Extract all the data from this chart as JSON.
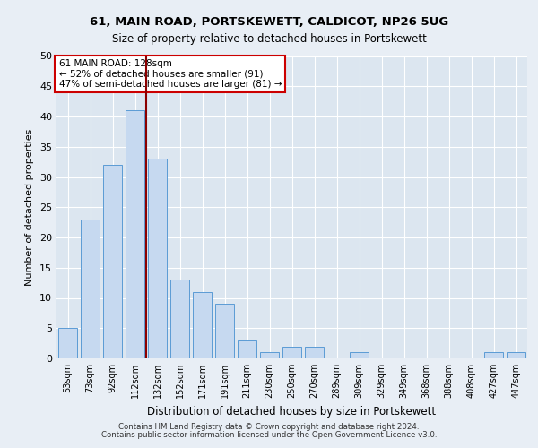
{
  "title1": "61, MAIN ROAD, PORTSKEWETT, CALDICOT, NP26 5UG",
  "title2": "Size of property relative to detached houses in Portskewett",
  "xlabel": "Distribution of detached houses by size in Portskewett",
  "ylabel": "Number of detached properties",
  "categories": [
    "53sqm",
    "73sqm",
    "92sqm",
    "112sqm",
    "132sqm",
    "152sqm",
    "171sqm",
    "191sqm",
    "211sqm",
    "230sqm",
    "250sqm",
    "270sqm",
    "289sqm",
    "309sqm",
    "329sqm",
    "349sqm",
    "368sqm",
    "388sqm",
    "408sqm",
    "427sqm",
    "447sqm"
  ],
  "values": [
    5,
    23,
    32,
    41,
    33,
    13,
    11,
    9,
    3,
    1,
    2,
    2,
    0,
    1,
    0,
    0,
    0,
    0,
    0,
    1,
    1
  ],
  "bar_color": "#c6d9f0",
  "bar_edge_color": "#5b9bd5",
  "vline_x": 3.5,
  "vline_color": "#8b0000",
  "annotation_text": "61 MAIN ROAD: 128sqm\n← 52% of detached houses are smaller (91)\n47% of semi-detached houses are larger (81) →",
  "annotation_box_color": "#ffffff",
  "annotation_box_edge": "#cc0000",
  "ylim": [
    0,
    50
  ],
  "yticks": [
    0,
    5,
    10,
    15,
    20,
    25,
    30,
    35,
    40,
    45,
    50
  ],
  "bg_color": "#e8eef5",
  "plot_bg_color": "#dce6f0",
  "grid_color": "#ffffff",
  "footer1": "Contains HM Land Registry data © Crown copyright and database right 2024.",
  "footer2": "Contains public sector information licensed under the Open Government Licence v3.0."
}
